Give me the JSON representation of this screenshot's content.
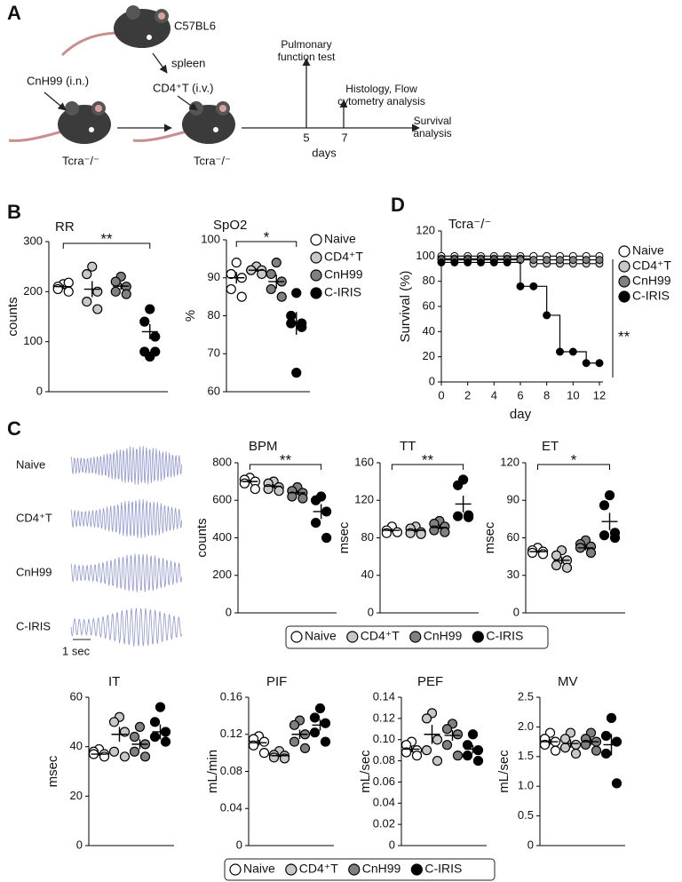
{
  "panel_labels": {
    "a": "A",
    "b": "B",
    "c": "C",
    "d": "D"
  },
  "schematic": {
    "donor": "C57BL6",
    "organ": "spleen",
    "infection": "CnH99 (i.n.)",
    "transfer": "CD4⁺T (i.v.)",
    "recipient_1": "Tcra⁻/⁻",
    "recipient_2": "Tcra⁻/⁻",
    "timeline": {
      "events": [
        "Pulmonary function test",
        "Histology, Flow cytometry analysis",
        "Survival analysis"
      ],
      "ticks": [
        "5",
        "7"
      ],
      "axis_label": "days"
    }
  },
  "traces": {
    "labels": [
      "Naive",
      "CD4⁺T",
      "CnH99",
      "C-IRIS"
    ],
    "scale": "1 sec"
  },
  "chart_data": [
    {
      "type": "strip",
      "title": "RR",
      "y_label": "counts",
      "ylim": [
        0,
        300
      ],
      "yticks": [
        0,
        100,
        200,
        300
      ],
      "significance": "**",
      "series": [
        {
          "name": "Naive",
          "color": "#ffffff",
          "values": [
            215,
            210,
            200,
            205,
            218
          ],
          "mean": 210,
          "sem": 4
        },
        {
          "name": "CD4⁺T",
          "color": "#c8c8c8",
          "values": [
            250,
            235,
            200,
            180,
            165
          ],
          "mean": 205,
          "sem": 16
        },
        {
          "name": "CnH99",
          "color": "#808080",
          "values": [
            230,
            220,
            210,
            200,
            195
          ],
          "mean": 211,
          "sem": 7
        },
        {
          "name": "C-IRIS",
          "color": "#000000",
          "values": [
            165,
            140,
            110,
            80,
            80,
            70
          ],
          "mean": 120,
          "sem": 15
        }
      ]
    },
    {
      "type": "strip",
      "title": "SpO2",
      "y_label": "%",
      "ylim": [
        60,
        100
      ],
      "yticks": [
        60,
        70,
        80,
        90,
        100
      ],
      "significance": "*",
      "series": [
        {
          "name": "Naive",
          "color": "#ffffff",
          "values": [
            94,
            91,
            90,
            87,
            85
          ],
          "mean": 90,
          "sem": 1.5
        },
        {
          "name": "CD4⁺T",
          "color": "#c8c8c8",
          "values": [
            93,
            92,
            92,
            92,
            91
          ],
          "mean": 92,
          "sem": 0.4
        },
        {
          "name": "CnH99",
          "color": "#808080",
          "values": [
            94,
            91,
            89,
            87,
            85
          ],
          "mean": 89,
          "sem": 1.8
        },
        {
          "name": "C-IRIS",
          "color": "#000000",
          "values": [
            86,
            80,
            78,
            78,
            77,
            65
          ],
          "mean": 78,
          "sem": 3
        }
      ]
    },
    {
      "type": "step",
      "title": "Tcra⁻/⁻",
      "x_label": "day",
      "y_label": "Survival (%)",
      "xlim": [
        0,
        12
      ],
      "xticks": [
        0,
        2,
        4,
        6,
        8,
        10,
        12
      ],
      "ylim": [
        0,
        120
      ],
      "yticks": [
        0,
        20,
        40,
        60,
        80,
        100,
        120
      ],
      "significance": "**",
      "x": [
        0,
        1,
        2,
        3,
        4,
        5,
        6,
        7,
        8,
        9,
        10,
        11,
        12
      ],
      "series": [
        {
          "name": "Naive",
          "color": "#ffffff",
          "values": [
            100,
            100,
            100,
            100,
            100,
            100,
            100,
            100,
            100,
            100,
            100,
            100,
            100
          ]
        },
        {
          "name": "CD4⁺T",
          "color": "#c8c8c8",
          "values": [
            98,
            98,
            98,
            98,
            98,
            98,
            98,
            94,
            94,
            94,
            94,
            94,
            94
          ]
        },
        {
          "name": "CnH99",
          "color": "#808080",
          "values": [
            97,
            97,
            97,
            97,
            97,
            97,
            97,
            97,
            97,
            97,
            97,
            97,
            97
          ]
        },
        {
          "name": "C-IRIS",
          "color": "#000000",
          "values": [
            95,
            95,
            95,
            95,
            95,
            95,
            76,
            76,
            53,
            24,
            24,
            15,
            15
          ]
        }
      ]
    },
    {
      "type": "strip",
      "title": "BPM",
      "y_label": "counts",
      "ylim": [
        0,
        800
      ],
      "yticks": [
        0,
        200,
        400,
        600,
        800
      ],
      "significance": "**",
      "series": [
        {
          "name": "Naive",
          "color": "#ffffff",
          "values": [
            720,
            710,
            700,
            690,
            660
          ],
          "mean": 700,
          "sem": 10
        },
        {
          "name": "CD4⁺T",
          "color": "#c8c8c8",
          "values": [
            700,
            690,
            670,
            660,
            650
          ],
          "mean": 675,
          "sem": 10
        },
        {
          "name": "CnH99",
          "color": "#808080",
          "values": [
            670,
            650,
            640,
            620,
            610
          ],
          "mean": 640,
          "sem": 12
        },
        {
          "name": "C-IRIS",
          "color": "#000000",
          "values": [
            620,
            600,
            540,
            480,
            400
          ],
          "mean": 540,
          "sem": 40
        }
      ]
    },
    {
      "type": "strip",
      "title": "TT",
      "y_label": "msec",
      "ylim": [
        0,
        160
      ],
      "yticks": [
        0,
        40,
        80,
        120,
        160
      ],
      "significance": "**",
      "series": [
        {
          "name": "Naive",
          "color": "#ffffff",
          "values": [
            92,
            88,
            86,
            85,
            86
          ],
          "mean": 88,
          "sem": 2
        },
        {
          "name": "CD4⁺T",
          "color": "#c8c8c8",
          "values": [
            92,
            90,
            86,
            85,
            84
          ],
          "mean": 88,
          "sem": 2
        },
        {
          "name": "CnH99",
          "color": "#808080",
          "values": [
            98,
            95,
            92,
            88,
            86
          ],
          "mean": 91,
          "sem": 2
        },
        {
          "name": "C-IRIS",
          "color": "#000000",
          "values": [
            142,
            136,
            104,
            103,
            102
          ],
          "mean": 116,
          "sem": 9
        }
      ]
    },
    {
      "type": "strip",
      "title": "ET",
      "y_label": "msec",
      "ylim": [
        0,
        120
      ],
      "yticks": [
        0,
        30,
        60,
        90,
        120
      ],
      "significance": "*",
      "series": [
        {
          "name": "Naive",
          "color": "#ffffff",
          "values": [
            52,
            50,
            49,
            48,
            47
          ],
          "mean": 49,
          "sem": 1
        },
        {
          "name": "CD4⁺T",
          "color": "#c8c8c8",
          "values": [
            50,
            46,
            42,
            38,
            36
          ],
          "mean": 42,
          "sem": 3
        },
        {
          "name": "CnH99",
          "color": "#808080",
          "values": [
            58,
            55,
            53,
            52,
            48
          ],
          "mean": 52,
          "sem": 2
        },
        {
          "name": "C-IRIS",
          "color": "#000000",
          "values": [
            94,
            86,
            64,
            62,
            60
          ],
          "mean": 73,
          "sem": 7
        }
      ]
    },
    {
      "type": "strip",
      "title": "IT",
      "y_label": "msec",
      "ylim": [
        0,
        60
      ],
      "yticks": [
        0,
        20,
        40,
        60
      ],
      "series": [
        {
          "name": "Naive",
          "color": "#ffffff",
          "values": [
            39,
            38,
            37,
            37,
            36
          ],
          "mean": 37,
          "sem": 0.6
        },
        {
          "name": "CD4⁺T",
          "color": "#c8c8c8",
          "values": [
            52,
            50,
            46,
            38,
            36
          ],
          "mean": 45,
          "sem": 3
        },
        {
          "name": "CnH99",
          "color": "#808080",
          "values": [
            48,
            44,
            41,
            38,
            36
          ],
          "mean": 41,
          "sem": 2
        },
        {
          "name": "C-IRIS",
          "color": "#000000",
          "values": [
            56,
            50,
            46,
            44,
            42
          ],
          "mean": 46,
          "sem": 3
        }
      ]
    },
    {
      "type": "strip",
      "title": "PIF",
      "y_label": "mL/min",
      "ylim": [
        0,
        0.16
      ],
      "yticks": [
        0,
        0.04,
        0.08,
        0.12,
        0.16
      ],
      "series": [
        {
          "name": "Naive",
          "color": "#ffffff",
          "values": [
            0.118,
            0.115,
            0.112,
            0.108,
            0.1
          ],
          "mean": 0.111,
          "sem": 0.003
        },
        {
          "name": "CD4⁺T",
          "color": "#c8c8c8",
          "values": [
            0.102,
            0.098,
            0.097,
            0.095,
            0.094
          ],
          "mean": 0.097,
          "sem": 0.0015
        },
        {
          "name": "CnH99",
          "color": "#808080",
          "values": [
            0.135,
            0.13,
            0.12,
            0.112,
            0.105
          ],
          "mean": 0.12,
          "sem": 0.005
        },
        {
          "name": "C-IRIS",
          "color": "#000000",
          "values": [
            0.148,
            0.138,
            0.132,
            0.122,
            0.112
          ],
          "mean": 0.13,
          "sem": 0.006
        }
      ]
    },
    {
      "type": "strip",
      "title": "PEF",
      "y_label": "mL/sec",
      "ylim": [
        0,
        0.14
      ],
      "yticks": [
        0,
        0.02,
        0.04,
        0.06,
        0.08,
        {
          "value": 0.1,
          "label": "0.10"
        },
        0.12,
        0.14
      ],
      "series": [
        {
          "name": "Naive",
          "color": "#ffffff",
          "values": [
            0.098,
            0.095,
            0.09,
            0.088,
            0.085
          ],
          "mean": 0.091,
          "sem": 0.003
        },
        {
          "name": "CD4⁺T",
          "color": "#c8c8c8",
          "values": [
            0.125,
            0.12,
            0.1,
            0.09,
            0.08
          ],
          "mean": 0.105,
          "sem": 0.009
        },
        {
          "name": "CnH99",
          "color": "#808080",
          "values": [
            0.115,
            0.11,
            0.105,
            0.095,
            0.085
          ],
          "mean": 0.104,
          "sem": 0.005
        },
        {
          "name": "C-IRIS",
          "color": "#000000",
          "values": [
            0.105,
            0.095,
            0.09,
            0.085,
            0.08
          ],
          "mean": 0.091,
          "sem": 0.004
        }
      ]
    },
    {
      "type": "strip",
      "title": "MV",
      "y_label": "mL/sec",
      "ylim": [
        0,
        2.5
      ],
      "yticks": [
        0,
        0.5,
        {
          "value": 1,
          "label": "1.0"
        },
        1.5,
        {
          "value": 2,
          "label": "2.0"
        },
        2.5
      ],
      "series": [
        {
          "name": "Naive",
          "color": "#ffffff",
          "values": [
            1.9,
            1.8,
            1.75,
            1.7,
            1.6
          ],
          "mean": 1.75,
          "sem": 0.05
        },
        {
          "name": "CD4⁺T",
          "color": "#c8c8c8",
          "values": [
            1.9,
            1.8,
            1.7,
            1.65,
            1.55
          ],
          "mean": 1.72,
          "sem": 0.07
        },
        {
          "name": "CnH99",
          "color": "#808080",
          "values": [
            1.9,
            1.8,
            1.75,
            1.7,
            1.6
          ],
          "mean": 1.75,
          "sem": 0.06
        },
        {
          "name": "C-IRIS",
          "color": "#000000",
          "values": [
            2.15,
            1.85,
            1.75,
            1.55,
            1.05
          ],
          "mean": 1.7,
          "sem": 0.18
        }
      ]
    }
  ]
}
